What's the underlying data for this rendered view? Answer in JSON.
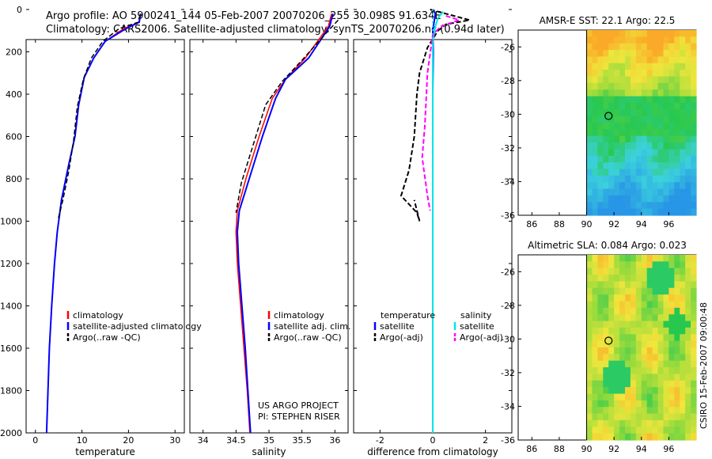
{
  "header": {
    "line1": "Argo profile: AO 5900241_144 05-Feb-2007 20070206_255 30.098S 91.634E",
    "line2": "Climatology: CARS2006. Satellite-adjusted climatology: synTS_20070206.nc (0.94d later)"
  },
  "colors": {
    "climatology": "#ff0000",
    "satellite": "#0000ff",
    "argo": "#000000",
    "salinity_sat": "#00e5e5",
    "salinity_argo": "#ff00ff"
  },
  "depth_ticks": [
    "0",
    "200",
    "400",
    "600",
    "800",
    "1000",
    "1200",
    "1400",
    "1600",
    "1800",
    "2000"
  ],
  "chart_data": [
    {
      "type": "line",
      "name": "temperature-profile",
      "xlabel": "temperature",
      "xlim": [
        -2,
        32
      ],
      "ylim": [
        2000,
        0
      ],
      "xticks": [
        "0",
        "10",
        "20",
        "30"
      ],
      "legend": [
        "climatology",
        "satellite-adjusted climatology",
        "Argo(..raw -QC)"
      ],
      "series": [
        {
          "name": "climatology",
          "x": [
            22.6,
            22.3,
            19,
            15,
            12.5,
            10.5,
            9.3,
            8.5,
            7,
            5.6,
            4.7,
            4.1,
            3.5,
            3.0,
            2.7,
            2.4
          ],
          "y": [
            20,
            60,
            90,
            150,
            230,
            320,
            450,
            600,
            750,
            900,
            1050,
            1200,
            1400,
            1600,
            1800,
            2000
          ]
        },
        {
          "name": "satellite-adjusted climatology",
          "x": [
            22.6,
            22.3,
            19.5,
            15,
            12.5,
            10.5,
            9.3,
            8.5,
            7,
            5.6,
            4.7,
            4.1,
            3.5,
            3.0,
            2.7,
            2.4
          ],
          "y": [
            20,
            60,
            90,
            150,
            230,
            320,
            450,
            600,
            750,
            900,
            1050,
            1200,
            1400,
            1600,
            1800,
            2000
          ]
        },
        {
          "name": "Argo(..raw -QC)",
          "x": [
            22.5,
            22.1,
            18,
            14.5,
            12,
            10.3,
            9.0,
            8.2,
            7.2,
            5.9,
            4.9
          ],
          "y": [
            25,
            60,
            90,
            150,
            230,
            330,
            460,
            620,
            760,
            900,
            990
          ]
        }
      ]
    },
    {
      "type": "line",
      "name": "salinity-profile",
      "xlabel": "salinity",
      "xlim": [
        33.8,
        36.2
      ],
      "ylim": [
        2000,
        0
      ],
      "xticks": [
        "34",
        "34.5",
        "35",
        "35.5",
        "36"
      ],
      "legend": [
        "climatology",
        "satellite adj. clim.",
        "Argo(..raw -QC)"
      ],
      "annotation": [
        "US ARGO PROJECT",
        "PI: STEPHEN RISER"
      ],
      "series": [
        {
          "name": "climatology",
          "x": [
            35.95,
            35.9,
            35.55,
            35.25,
            35.05,
            34.85,
            34.65,
            34.52,
            34.5,
            34.52,
            34.57,
            34.62,
            34.67,
            34.71
          ],
          "y": [
            20,
            80,
            230,
            330,
            420,
            600,
            800,
            950,
            1050,
            1200,
            1400,
            1600,
            1800,
            2000
          ]
        },
        {
          "name": "satellite adj. clim.",
          "x": [
            35.97,
            35.92,
            35.6,
            35.25,
            35.1,
            34.9,
            34.7,
            34.55,
            34.52,
            34.54,
            34.59,
            34.64,
            34.68,
            34.72
          ],
          "y": [
            20,
            80,
            230,
            330,
            420,
            600,
            800,
            950,
            1050,
            1200,
            1400,
            1600,
            1800,
            2000
          ]
        },
        {
          "name": "Argo(..raw -QC)",
          "x": [
            36.05,
            35.9,
            35.5,
            35.2,
            34.95,
            34.78,
            34.58,
            34.5
          ],
          "y": [
            50,
            100,
            240,
            340,
            450,
            620,
            820,
            960
          ]
        }
      ]
    },
    {
      "type": "line",
      "name": "difference-profile",
      "xlabel": "difference from climatology",
      "xlim": [
        -3,
        3
      ],
      "ylim": [
        2000,
        0
      ],
      "xticks": [
        "-2",
        "0",
        "2"
      ],
      "legend": {
        "temperature": [
          "temperature",
          "satellite",
          "Argo(-adj)"
        ],
        "salinity": [
          "salinity",
          "satellite",
          "Argo(-adj)"
        ]
      },
      "series": [
        {
          "name": "temperature satellite",
          "x": [
            0,
            0.1,
            0.05,
            0,
            0.02,
            0,
            0,
            0,
            0
          ],
          "y": [
            0,
            20,
            60,
            100,
            200,
            400,
            800,
            1200,
            1500
          ]
        },
        {
          "name": "temperature Argo(-adj)",
          "x": [
            -0.1,
            0.8,
            1.4,
            0.5,
            0.2,
            -0.2,
            -0.5,
            -0.6,
            -0.7,
            -0.9,
            -1.2,
            -0.6,
            -0.5,
            -0.7
          ],
          "y": [
            0,
            30,
            50,
            70,
            100,
            180,
            300,
            400,
            600,
            760,
            880,
            960,
            1000,
            900
          ]
        },
        {
          "name": "salinity satellite",
          "x": [
            0.4,
            0.2,
            0.1,
            0,
            0,
            0,
            0,
            0,
            0,
            0
          ],
          "y": [
            10,
            40,
            80,
            150,
            400,
            800,
            1200,
            1600,
            1800,
            2000
          ]
        },
        {
          "name": "salinity Argo(-adj)",
          "x": [
            0.5,
            1.0,
            0.3,
            0,
            -0.2,
            -0.3,
            -0.4,
            -0.2,
            -0.1
          ],
          "y": [
            30,
            50,
            80,
            120,
            300,
            550,
            700,
            880,
            950
          ]
        }
      ]
    },
    {
      "type": "heatmap",
      "name": "amsr-map",
      "title": "AMSR-E SST: 22.1 Argo: 22.5",
      "xlim": [
        85,
        98
      ],
      "ylim": [
        -36,
        -25
      ],
      "xticks": [
        "86",
        "88",
        "90",
        "92",
        "94",
        "96"
      ],
      "yticks": [
        "-26",
        "-28",
        "-30",
        "-32",
        "-34",
        "-36"
      ],
      "data_xlim": [
        90,
        98
      ],
      "marker": {
        "lon": 91.6,
        "lat": -30.1
      }
    },
    {
      "type": "heatmap",
      "name": "sla-map",
      "title": "Altimetric SLA: 0.084 Argo: 0.023",
      "xlim": [
        85,
        98
      ],
      "ylim": [
        -36,
        -25
      ],
      "xticks": [
        "86",
        "88",
        "90",
        "92",
        "94",
        "96"
      ],
      "yticks": [
        "-26",
        "-28",
        "-30",
        "-32",
        "-34",
        "-36"
      ],
      "data_xlim": [
        90,
        98
      ],
      "marker": {
        "lon": 91.6,
        "lat": -30.1
      }
    }
  ],
  "footer_side": "CSIRO 15-Feb-2007 09:00:48"
}
